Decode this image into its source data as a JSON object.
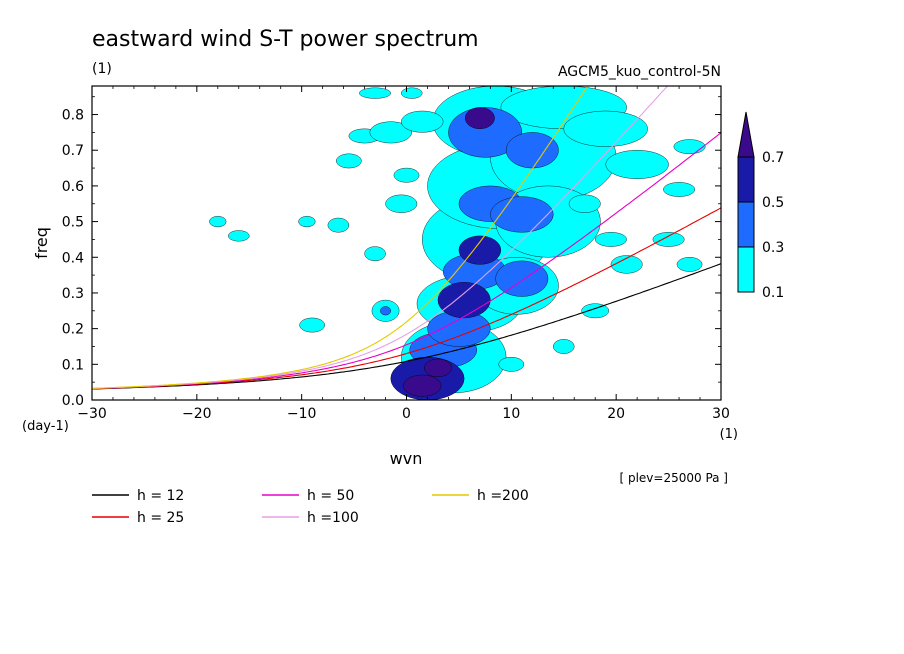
{
  "chart_data": {
    "type": "heatmap",
    "title": "eastward wind S-T power spectrum",
    "subtitle_left": "(1)",
    "subtitle_right": "AGCM5_kuo_control-5N",
    "xlabel": "wvn",
    "ylabel": "freq",
    "x_unit": "(1)",
    "y_unit": "(day-1)",
    "xlim": [
      -30,
      30
    ],
    "ylim": [
      0,
      0.88
    ],
    "x_ticks": [
      -30,
      -20,
      -10,
      0,
      10,
      20,
      30
    ],
    "x_tick_labels": [
      "−30",
      "−20",
      "−10",
      "0",
      "10",
      "20",
      "30"
    ],
    "y_ticks": [
      0.0,
      0.1,
      0.2,
      0.3,
      0.4,
      0.5,
      0.6,
      0.7,
      0.8
    ],
    "y_tick_labels": [
      "0.0",
      "0.1",
      "0.2",
      "0.3",
      "0.4",
      "0.5",
      "0.6",
      "0.7",
      "0.8"
    ],
    "annotation": "[ plev=25000 Pa ]",
    "colorbar": {
      "levels": [
        "0.1",
        "0.3",
        "0.5",
        "0.7"
      ],
      "colors": [
        "#00ffff",
        "#1e6cff",
        "#1a1aa8",
        "#3a0a8c"
      ]
    },
    "contour_blobs": [
      {
        "x": 1.5,
        "y": 0.04,
        "rx": 1.8,
        "ry": 0.03,
        "level": 3
      },
      {
        "x": 3.0,
        "y": 0.09,
        "rx": 1.3,
        "ry": 0.025,
        "level": 3
      },
      {
        "x": 2.0,
        "y": 0.06,
        "rx": 3.5,
        "ry": 0.06,
        "level": 2
      },
      {
        "x": 3.5,
        "y": 0.14,
        "rx": 3.2,
        "ry": 0.05,
        "level": 1
      },
      {
        "x": 5.0,
        "y": 0.2,
        "rx": 3.0,
        "ry": 0.05,
        "level": 1
      },
      {
        "x": 4.5,
        "y": 0.12,
        "rx": 5.0,
        "ry": 0.1,
        "level": 0
      },
      {
        "x": 5.5,
        "y": 0.28,
        "rx": 2.5,
        "ry": 0.05,
        "level": 2
      },
      {
        "x": 6.0,
        "y": 0.27,
        "rx": 5.0,
        "ry": 0.08,
        "level": 0
      },
      {
        "x": 6.5,
        "y": 0.36,
        "rx": 3.0,
        "ry": 0.05,
        "level": 1
      },
      {
        "x": 7.0,
        "y": 0.42,
        "rx": 2.0,
        "ry": 0.04,
        "level": 2
      },
      {
        "x": 7.5,
        "y": 0.45,
        "rx": 6.0,
        "ry": 0.12,
        "level": 0
      },
      {
        "x": 8.0,
        "y": 0.55,
        "rx": 3.0,
        "ry": 0.05,
        "level": 1
      },
      {
        "x": 9.0,
        "y": 0.6,
        "rx": 7.0,
        "ry": 0.12,
        "level": 0
      },
      {
        "x": 7.0,
        "y": 0.79,
        "rx": 1.4,
        "ry": 0.03,
        "level": 3
      },
      {
        "x": 7.5,
        "y": 0.75,
        "rx": 3.5,
        "ry": 0.07,
        "level": 1
      },
      {
        "x": 8.5,
        "y": 0.78,
        "rx": 6.0,
        "ry": 0.1,
        "level": 0
      },
      {
        "x": 12.0,
        "y": 0.7,
        "rx": 2.5,
        "ry": 0.05,
        "level": 1
      },
      {
        "x": 14.0,
        "y": 0.68,
        "rx": 6.0,
        "ry": 0.12,
        "level": 0
      },
      {
        "x": 11.0,
        "y": 0.52,
        "rx": 3.0,
        "ry": 0.05,
        "level": 1
      },
      {
        "x": 13.5,
        "y": 0.5,
        "rx": 5.0,
        "ry": 0.1,
        "level": 0
      },
      {
        "x": 11.0,
        "y": 0.34,
        "rx": 2.5,
        "ry": 0.05,
        "level": 1
      },
      {
        "x": 10.5,
        "y": 0.32,
        "rx": 4.0,
        "ry": 0.08,
        "level": 0
      },
      {
        "x": 15.0,
        "y": 0.82,
        "rx": 6.0,
        "ry": 0.06,
        "level": 0
      },
      {
        "x": 19.0,
        "y": 0.76,
        "rx": 4.0,
        "ry": 0.05,
        "level": 0
      },
      {
        "x": 22.0,
        "y": 0.66,
        "rx": 3.0,
        "ry": 0.04,
        "level": 0
      },
      {
        "x": -2.0,
        "y": 0.25,
        "rx": 1.3,
        "ry": 0.03,
        "level": 0
      },
      {
        "x": -2.0,
        "y": 0.25,
        "rx": 0.5,
        "ry": 0.012,
        "level": 1
      },
      {
        "x": -9.0,
        "y": 0.21,
        "rx": 1.2,
        "ry": 0.02,
        "level": 0
      },
      {
        "x": -18.0,
        "y": 0.5,
        "rx": 0.8,
        "ry": 0.015,
        "level": 0
      },
      {
        "x": -16.0,
        "y": 0.46,
        "rx": 1.0,
        "ry": 0.015,
        "level": 0
      },
      {
        "x": -9.5,
        "y": 0.5,
        "rx": 0.8,
        "ry": 0.015,
        "level": 0
      },
      {
        "x": -5.5,
        "y": 0.67,
        "rx": 1.2,
        "ry": 0.02,
        "level": 0
      },
      {
        "x": -4.0,
        "y": 0.74,
        "rx": 1.5,
        "ry": 0.02,
        "level": 0
      },
      {
        "x": -1.5,
        "y": 0.75,
        "rx": 2.0,
        "ry": 0.03,
        "level": 0
      },
      {
        "x": 1.5,
        "y": 0.78,
        "rx": 2.0,
        "ry": 0.03,
        "level": 0
      },
      {
        "x": -3.0,
        "y": 0.86,
        "rx": 1.5,
        "ry": 0.015,
        "level": 0
      },
      {
        "x": 0.5,
        "y": 0.86,
        "rx": 1.0,
        "ry": 0.015,
        "level": 0
      },
      {
        "x": -6.5,
        "y": 0.49,
        "rx": 1.0,
        "ry": 0.02,
        "level": 0
      },
      {
        "x": -3.0,
        "y": 0.41,
        "rx": 1.0,
        "ry": 0.02,
        "level": 0
      },
      {
        "x": -0.5,
        "y": 0.55,
        "rx": 1.5,
        "ry": 0.025,
        "level": 0
      },
      {
        "x": 0.0,
        "y": 0.63,
        "rx": 1.2,
        "ry": 0.02,
        "level": 0
      },
      {
        "x": 21.0,
        "y": 0.38,
        "rx": 1.5,
        "ry": 0.025,
        "level": 0
      },
      {
        "x": 25.0,
        "y": 0.45,
        "rx": 1.5,
        "ry": 0.02,
        "level": 0
      },
      {
        "x": 27.0,
        "y": 0.38,
        "rx": 1.2,
        "ry": 0.02,
        "level": 0
      },
      {
        "x": 18.0,
        "y": 0.25,
        "rx": 1.3,
        "ry": 0.02,
        "level": 0
      },
      {
        "x": 15.0,
        "y": 0.15,
        "rx": 1.0,
        "ry": 0.02,
        "level": 0
      },
      {
        "x": 26.0,
        "y": 0.59,
        "rx": 1.5,
        "ry": 0.02,
        "level": 0
      },
      {
        "x": 27.0,
        "y": 0.71,
        "rx": 1.5,
        "ry": 0.02,
        "level": 0
      },
      {
        "x": 17.0,
        "y": 0.55,
        "rx": 1.5,
        "ry": 0.025,
        "level": 0
      },
      {
        "x": 19.5,
        "y": 0.45,
        "rx": 1.5,
        "ry": 0.02,
        "level": 0
      },
      {
        "x": 10.0,
        "y": 0.1,
        "rx": 1.2,
        "ry": 0.02,
        "level": 0
      }
    ],
    "series": [
      {
        "name": "h = 12",
        "h": 12,
        "color": "#000000"
      },
      {
        "name": "h = 25",
        "h": 25,
        "color": "#e60000"
      },
      {
        "name": "h = 50",
        "h": 50,
        "color": "#e600c8"
      },
      {
        "name": "h =100",
        "h": 100,
        "color": "#e6a0e6"
      },
      {
        "name": "h =200",
        "h": 200,
        "color": "#e6c800"
      }
    ]
  }
}
